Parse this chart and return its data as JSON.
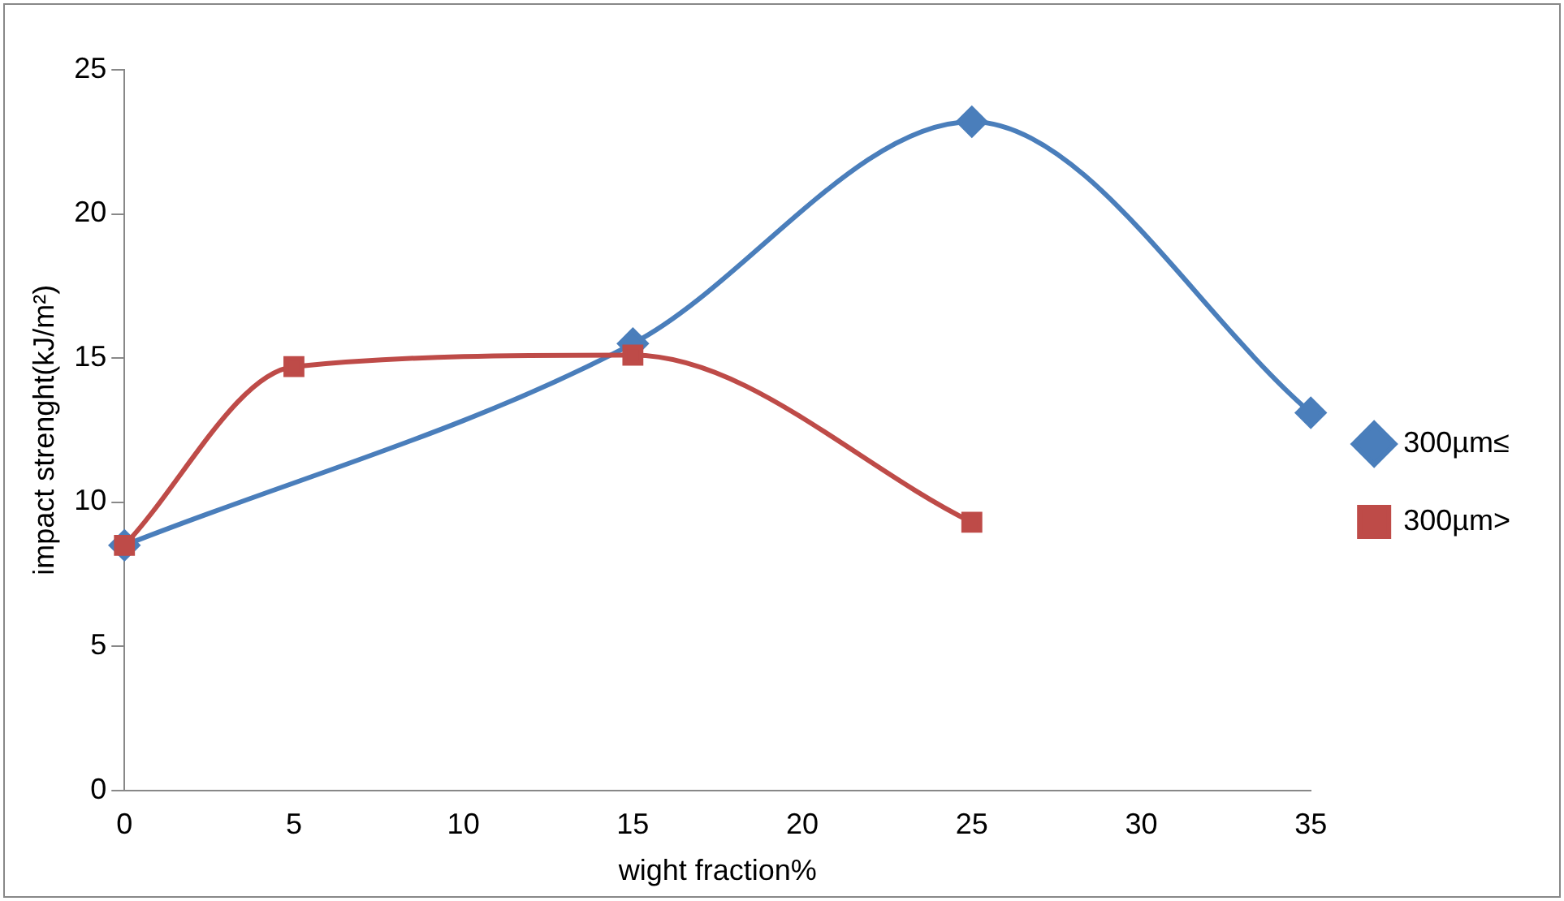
{
  "chart_data": {
    "type": "line",
    "xlabel": "wight fraction%",
    "ylabel": "impact strenght(kJ/m²)",
    "xlim": [
      0,
      35
    ],
    "xticks": [
      0,
      5,
      10,
      15,
      20,
      25,
      30,
      35
    ],
    "ylim": [
      0,
      25
    ],
    "yticks": [
      0,
      5,
      10,
      15,
      20,
      25
    ],
    "grid": false,
    "legend": "right",
    "series": [
      {
        "name": "300µm≤",
        "color": "#4a7ebb",
        "marker": "diamond",
        "x": [
          0,
          15,
          25,
          35
        ],
        "values": [
          8.5,
          15.5,
          23.2,
          13.1
        ]
      },
      {
        "name": "300µm>",
        "color": "#be4b48",
        "marker": "square",
        "x": [
          0,
          5,
          15,
          25
        ],
        "values": [
          8.5,
          14.7,
          15.1,
          9.3
        ]
      }
    ]
  }
}
